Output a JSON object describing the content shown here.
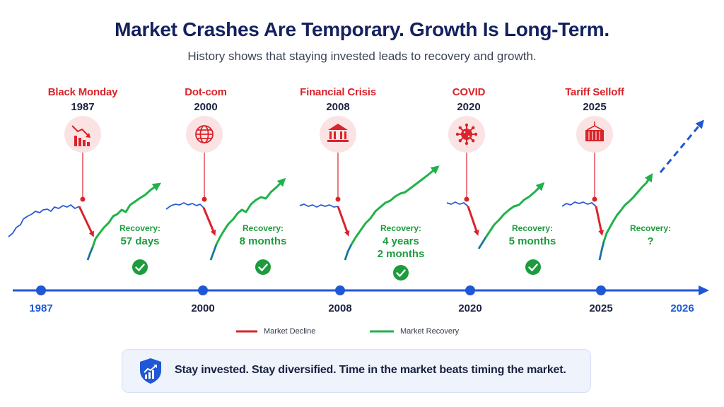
{
  "header": {
    "title": "Market Crashes Are Temporary. Growth Is Long-Term.",
    "subtitle": "History shows that staying invested leads to recovery and growth."
  },
  "events": [
    {
      "name": "Black Monday",
      "year": "1987",
      "icon": "declining-chart-icon",
      "recovery_label": "Recovery:",
      "recovery_lines": [
        "57 days"
      ],
      "recovered": true
    },
    {
      "name": "Dot-com",
      "year": "2000",
      "icon": "globe-icon",
      "recovery_label": "Recovery:",
      "recovery_lines": [
        "8 months"
      ],
      "recovered": true
    },
    {
      "name": "Financial Crisis",
      "year": "2008",
      "icon": "bank-icon",
      "recovery_label": "Recovery:",
      "recovery_lines": [
        "4 years",
        "2 months"
      ],
      "recovered": true
    },
    {
      "name": "COVID",
      "year": "2020",
      "icon": "virus-icon",
      "recovery_label": "Recovery:",
      "recovery_lines": [
        "5 months"
      ],
      "recovered": true
    },
    {
      "name": "Tariff Selloff",
      "year": "2025",
      "icon": "shipping-container-icon",
      "recovery_label": "Recovery:",
      "recovery_lines": [
        "?"
      ],
      "recovered": false
    }
  ],
  "timeline": {
    "labels": [
      "1987",
      "2000",
      "2008",
      "2020",
      "2025",
      "2026"
    ]
  },
  "legend": {
    "decline": "Market Decline",
    "recovery": "Market Recovery"
  },
  "banner": {
    "text": "Stay invested. Stay diversified. Time in the market beats timing the market.",
    "icon": "shield-growth-icon"
  },
  "colors": {
    "title": "#14215f",
    "decline": "#d9242b",
    "recovery": "#20b24a",
    "pre_crash": "#2a5bd7",
    "timeline": "#1f57d6",
    "icon_bg": "#fbe3e4"
  }
}
